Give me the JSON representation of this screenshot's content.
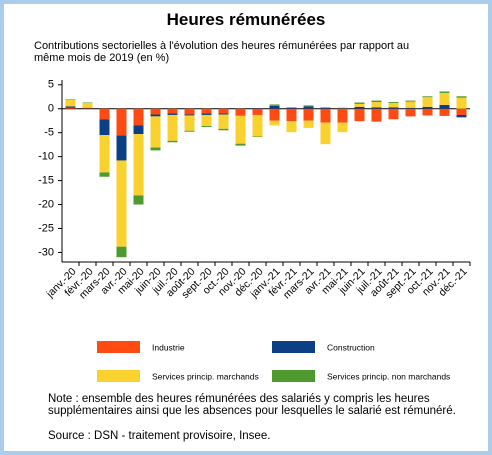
{
  "chart_data": {
    "type": "stacked_bar",
    "title": "Heures rémunérées",
    "subtitle": "Contributions sectorielles à l'évolution des heures rémunérées par rapport au même mois de 2019 (en %)",
    "categories": [
      "janv.-20",
      "févr.-20",
      "mars-20",
      "avr.-20",
      "mai-20",
      "juin-20",
      "juil.-20",
      "août-20",
      "sept.-20",
      "oct.-20",
      "nov.-20",
      "déc.-20",
      "janv.-21",
      "févr.-21",
      "mars-21",
      "avr.-21",
      "mai-21",
      "juin-21",
      "juil.-21",
      "août-21",
      "sept.-21",
      "oct.-21",
      "nov.-21",
      "déc.-21"
    ],
    "series": [
      {
        "name": "Industrie",
        "color": "#ff4a12",
        "values": [
          0.2,
          0.1,
          -2.2,
          -5.6,
          -3.5,
          -1.2,
          -1.0,
          -1.2,
          -1.0,
          -1.0,
          -1.3,
          -1.3,
          -2.5,
          -2.6,
          -2.5,
          -2.9,
          -2.9,
          -2.6,
          -2.7,
          -2.2,
          -1.6,
          -1.4,
          -1.5,
          -1.3
        ]
      },
      {
        "name": "Construction",
        "color": "#0d3f86",
        "values": [
          0.3,
          0.1,
          -3.3,
          -5.2,
          -1.8,
          -0.4,
          -0.3,
          -0.2,
          -0.3,
          -0.2,
          -0.1,
          0.1,
          0.6,
          0.2,
          0.5,
          0.2,
          0.1,
          0.4,
          0.3,
          0.3,
          0.2,
          0.4,
          0.8,
          -0.5
        ]
      },
      {
        "name": "Services princip. marchands",
        "color": "#f9d22f",
        "values": [
          1.4,
          1.0,
          -7.8,
          -18,
          -12.8,
          -6.5,
          -5.4,
          -3.2,
          -2.3,
          -3.0,
          -5.9,
          -4.5,
          -1.0,
          -2.3,
          -1.5,
          -4.5,
          -2.0,
          0.6,
          1.1,
          0.9,
          1.3,
          2.0,
          2.5,
          2.3
        ]
      },
      {
        "name": "Services princip. non marchands",
        "color": "#4f9a2e",
        "values": [
          0.1,
          0.1,
          -0.9,
          -2.2,
          -1.9,
          -0.6,
          -0.3,
          -0.2,
          -0.2,
          -0.3,
          -0.4,
          -0.1,
          0.3,
          0.1,
          0.2,
          0.1,
          0.1,
          0.3,
          0.3,
          0.2,
          0.2,
          0.2,
          0.3,
          0.3
        ]
      }
    ],
    "ylim": [
      -32,
      6
    ],
    "yticks": [
      5,
      0,
      -5,
      -10,
      -15,
      -20,
      -25,
      -30
    ],
    "note": "Note : ensemble des heures rémunérées des salariés y compris les heures supplémentaires ainsi que les absences pour lesquelles le salarié est rémunéré.",
    "source": "Source : DSN - traitement provisoire, Insee."
  }
}
